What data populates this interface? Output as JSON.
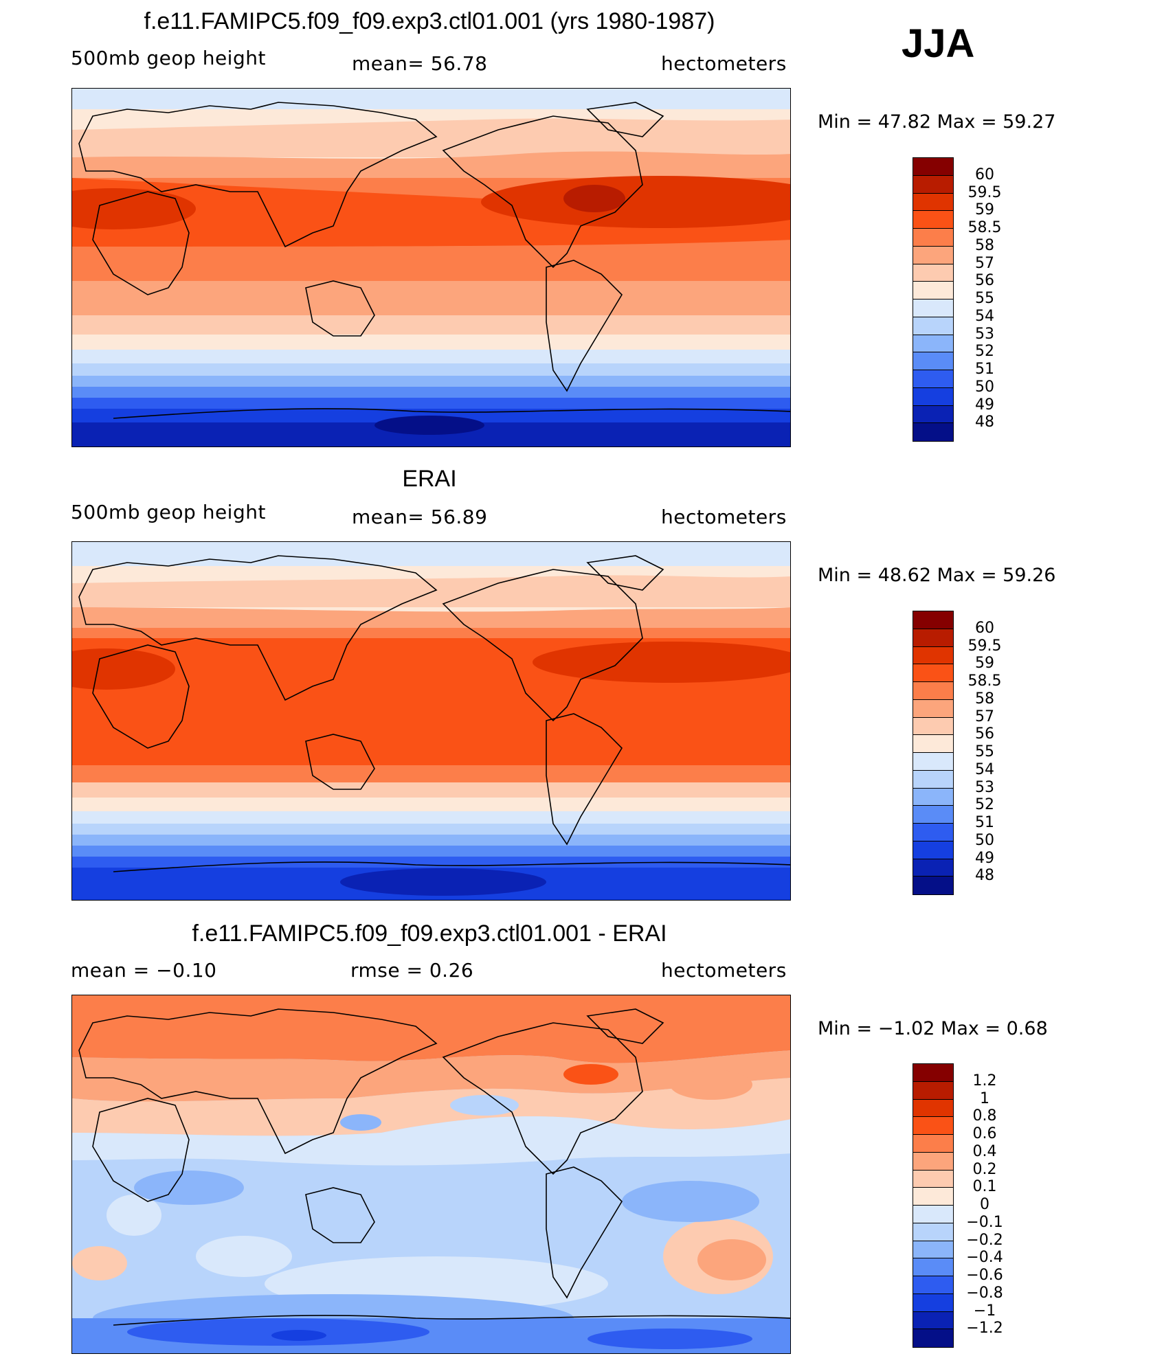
{
  "season": "JJA",
  "panels": [
    {
      "title": "f.e11.FAMIPC5.f09_f09.exp3.ctl01.001 (yrs 1980-1987)",
      "left_label": "500mb geop height",
      "center_label": "mean=   56.78",
      "right_label": "hectometers",
      "minmax": "Min =   47.82 Max =   59.27",
      "legend_colors": [
        "#850000",
        "#b81c00",
        "#e03400",
        "#fa5216",
        "#fc7e4a",
        "#fca57c",
        "#fdcbb0",
        "#fde9d9",
        "#d9e8fb",
        "#b8d4fb",
        "#8bb5fa",
        "#5a8cf7",
        "#2e5cf0",
        "#153fe0",
        "#0a22b4",
        "#040f88"
      ],
      "legend_labels": [
        "60",
        "59.5",
        "59",
        "58.5",
        "58",
        "57",
        "56",
        "55",
        "54",
        "53",
        "52",
        "51",
        "50",
        "49",
        "48"
      ]
    },
    {
      "title": "ERAI",
      "left_label": "500mb geop height",
      "center_label": "mean=   56.89",
      "right_label": "hectometers",
      "minmax": "Min =   48.62 Max =   59.26",
      "legend_colors": [
        "#850000",
        "#b81c00",
        "#e03400",
        "#fa5216",
        "#fc7e4a",
        "#fca57c",
        "#fdcbb0",
        "#fde9d9",
        "#d9e8fb",
        "#b8d4fb",
        "#8bb5fa",
        "#5a8cf7",
        "#2e5cf0",
        "#153fe0",
        "#0a22b4",
        "#040f88"
      ],
      "legend_labels": [
        "60",
        "59.5",
        "59",
        "58.5",
        "58",
        "57",
        "56",
        "55",
        "54",
        "53",
        "52",
        "51",
        "50",
        "49",
        "48"
      ]
    },
    {
      "title": "f.e11.FAMIPC5.f09_f09.exp3.ctl01.001 - ERAI",
      "left_label": "mean =   −0.10",
      "center_label": "rmse =    0.26",
      "right_label": "hectometers",
      "minmax": "Min =   −1.02 Max =    0.68",
      "legend_colors": [
        "#850000",
        "#b81c00",
        "#e03400",
        "#fa5216",
        "#fc7e4a",
        "#fca57c",
        "#fdcbb0",
        "#fde9d9",
        "#d9e8fb",
        "#b8d4fb",
        "#8bb5fa",
        "#5a8cf7",
        "#2e5cf0",
        "#153fe0",
        "#0a22b4",
        "#040f88"
      ],
      "legend_labels": [
        "1.2",
        "1",
        "0.8",
        "0.6",
        "0.4",
        "0.2",
        "0.1",
        "0",
        "−0.1",
        "−0.2",
        "−0.4",
        "−0.6",
        "−0.8",
        "−1",
        "−1.2"
      ]
    }
  ]
}
